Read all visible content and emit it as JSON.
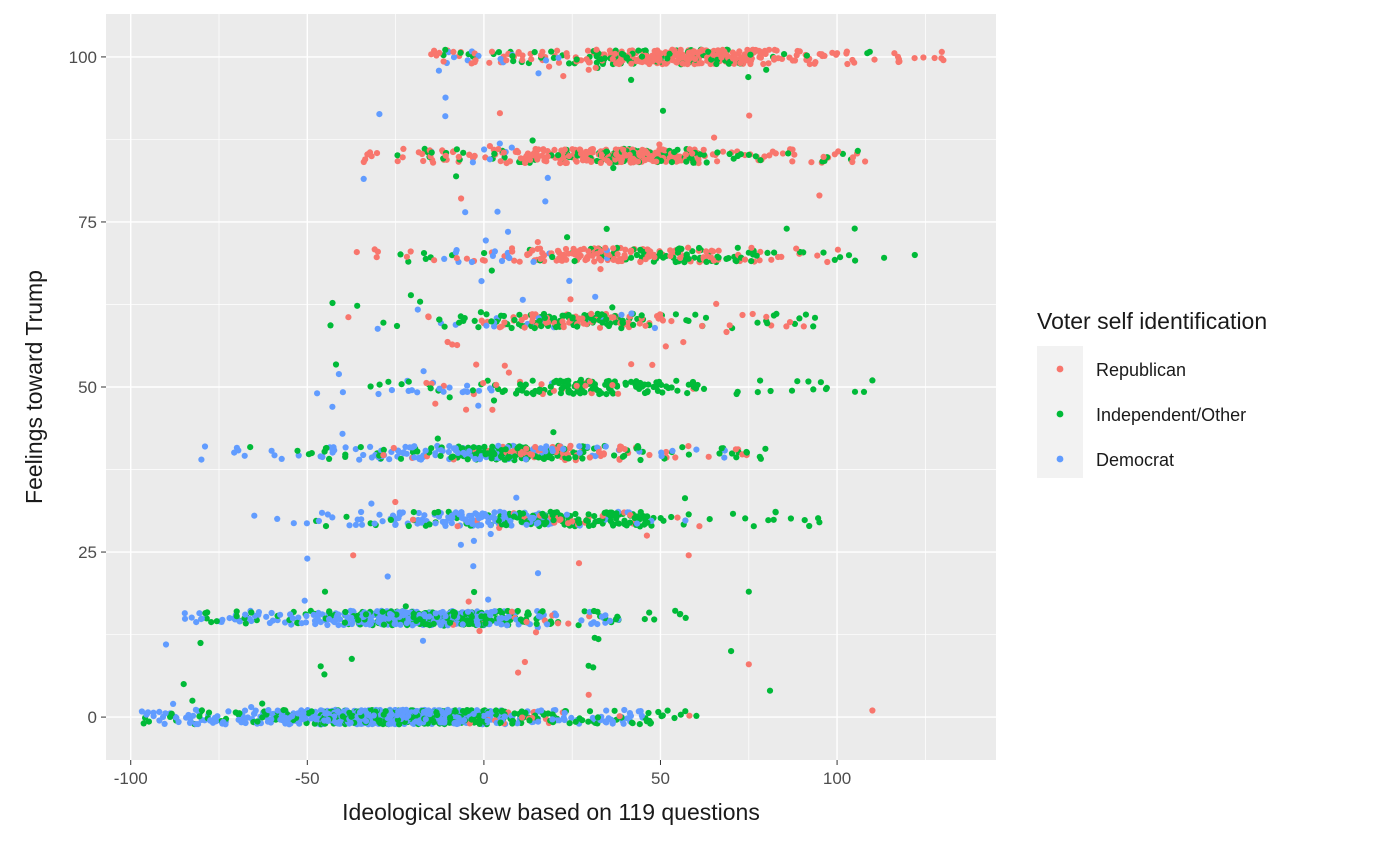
{
  "chart_data": {
    "type": "scatter",
    "xlabel": "Ideological skew based on 119 questions",
    "ylabel": "Feelings toward Trump",
    "xlim": [
      -107,
      145
    ],
    "ylim": [
      -6.5,
      106.5
    ],
    "x_ticks": [
      -100,
      -50,
      0,
      50,
      100
    ],
    "y_ticks": [
      0,
      25,
      50,
      75,
      100
    ],
    "x_tick_labels": [
      "-100",
      "-50",
      "0",
      "50",
      "100"
    ],
    "y_tick_labels": [
      "0",
      "25",
      "50",
      "75",
      "100"
    ],
    "grid": true,
    "legend_position": "right",
    "legend_title": "Voter self identification",
    "series": [
      {
        "name": "Republican",
        "color": "#F8766D",
        "bands": [
          {
            "y": 100,
            "x_range": [
              -16,
              132
            ],
            "n": 340
          },
          {
            "y": 85,
            "x_range": [
              -35,
              110
            ],
            "n": 300
          },
          {
            "y": 70,
            "x_range": [
              -40,
              112
            ],
            "n": 160
          },
          {
            "y": 60,
            "x_range": [
              -45,
              98
            ],
            "n": 80
          },
          {
            "y": 50,
            "x_range": [
              -20,
              60
            ],
            "n": 20
          },
          {
            "y": 40,
            "x_range": [
              -30,
              80
            ],
            "n": 70
          },
          {
            "y": 30,
            "x_range": [
              -40,
              75
            ],
            "n": 25
          },
          {
            "y": 15,
            "x_range": [
              -20,
              45
            ],
            "n": 10
          },
          {
            "y": 0,
            "x_range": [
              -40,
              60
            ],
            "n": 20
          }
        ],
        "points": [
          [
            110,
            1
          ],
          [
            75,
            8
          ],
          [
            58,
            24.5
          ],
          [
            -37,
            24.5
          ],
          [
            95,
            79
          ],
          [
            -30,
            70.5
          ]
        ]
      },
      {
        "name": "Independent/Other",
        "color": "#00BA38",
        "bands": [
          {
            "y": 100,
            "x_range": [
              -33,
              128
            ],
            "n": 100
          },
          {
            "y": 85,
            "x_range": [
              -25,
              108
            ],
            "n": 130
          },
          {
            "y": 70,
            "x_range": [
              -25,
              122
            ],
            "n": 90
          },
          {
            "y": 60,
            "x_range": [
              -45,
              95
            ],
            "n": 120
          },
          {
            "y": 50,
            "x_range": [
              -45,
              110
            ],
            "n": 140
          },
          {
            "y": 40,
            "x_range": [
              -68,
              80
            ],
            "n": 160
          },
          {
            "y": 30,
            "x_range": [
              -50,
              95
            ],
            "n": 150
          },
          {
            "y": 15,
            "x_range": [
              -82,
              58
            ],
            "n": 230
          },
          {
            "y": 0,
            "x_range": [
              -97,
              62
            ],
            "n": 380
          }
        ],
        "points": [
          [
            81,
            4
          ],
          [
            70,
            10
          ],
          [
            75,
            19
          ],
          [
            110,
            51
          ],
          [
            95,
            29.5
          ],
          [
            122,
            70
          ],
          [
            105,
            74
          ],
          [
            -45,
            19
          ],
          [
            -85,
            5
          ],
          [
            -70,
            16
          ]
        ]
      },
      {
        "name": "Democrat",
        "color": "#619CFF",
        "bands": [
          {
            "y": 100,
            "x_range": [
              -30,
              40
            ],
            "n": 12
          },
          {
            "y": 85,
            "x_range": [
              -35,
              30
            ],
            "n": 6
          },
          {
            "y": 70,
            "x_range": [
              -30,
              40
            ],
            "n": 15
          },
          {
            "y": 60,
            "x_range": [
              -35,
              60
            ],
            "n": 15
          },
          {
            "y": 50,
            "x_range": [
              -50,
              30
            ],
            "n": 20
          },
          {
            "y": 40,
            "x_range": [
              -80,
              70
            ],
            "n": 120
          },
          {
            "y": 30,
            "x_range": [
              -60,
              60
            ],
            "n": 130
          },
          {
            "y": 15,
            "x_range": [
              -85,
              40
            ],
            "n": 320
          },
          {
            "y": 0,
            "x_range": [
              -97,
              45
            ],
            "n": 700
          }
        ],
        "points": [
          [
            -80,
            39
          ],
          [
            -65,
            30.5
          ],
          [
            -72,
            15
          ],
          [
            -88,
            2
          ],
          [
            -90,
            11
          ],
          [
            -50,
            24
          ]
        ]
      }
    ]
  }
}
